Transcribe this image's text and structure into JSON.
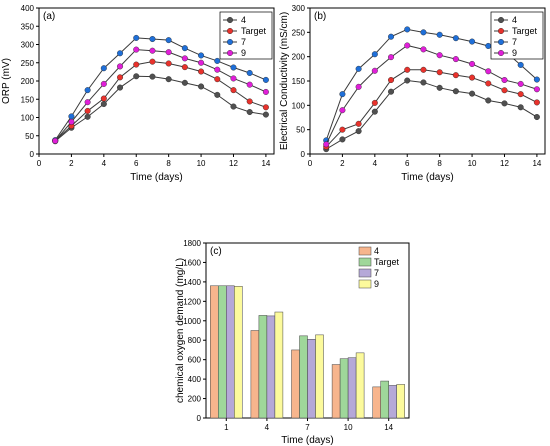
{
  "chart_data": [
    {
      "panel": "(a)",
      "type": "line",
      "xlabel": "Time (days)",
      "ylabel": "ORP (mV)",
      "xlim": [
        0,
        14.5
      ],
      "ylim": [
        0,
        400
      ],
      "xticks": [
        0,
        2,
        4,
        6,
        8,
        10,
        12,
        14
      ],
      "yticks": [
        0,
        50,
        100,
        150,
        200,
        250,
        300,
        350,
        400
      ],
      "x": [
        1,
        2,
        3,
        4,
        5,
        6,
        7,
        8,
        9,
        10,
        11,
        12,
        13,
        14
      ],
      "legend_position": "top-right",
      "series": [
        {
          "name": "4",
          "color": "#505050",
          "values": [
            35,
            72,
            102,
            137,
            182,
            213,
            212,
            205,
            195,
            185,
            162,
            130,
            115,
            108
          ]
        },
        {
          "name": "Target",
          "color": "#e8322c",
          "values": [
            37,
            77,
            118,
            152,
            210,
            245,
            253,
            248,
            238,
            226,
            205,
            175,
            144,
            128
          ]
        },
        {
          "name": "7",
          "color": "#1f6fd8",
          "values": [
            38,
            103,
            175,
            235,
            276,
            318,
            315,
            312,
            290,
            270,
            255,
            237,
            222,
            203
          ]
        },
        {
          "name": "9",
          "color": "#e01fd8",
          "values": [
            36,
            88,
            142,
            192,
            240,
            286,
            283,
            279,
            262,
            250,
            231,
            207,
            190,
            170
          ]
        }
      ]
    },
    {
      "panel": "(b)",
      "type": "line",
      "xlabel": "Time (days)",
      "ylabel": "Electrical Conductivity (mS/cm)",
      "xlim": [
        0,
        14.5
      ],
      "ylim": [
        0,
        300
      ],
      "xticks": [
        0,
        2,
        4,
        6,
        8,
        10,
        12,
        14
      ],
      "yticks": [
        0,
        50,
        100,
        150,
        200,
        250,
        300
      ],
      "x": [
        1,
        2,
        3,
        4,
        5,
        6,
        7,
        8,
        9,
        10,
        11,
        12,
        13,
        14
      ],
      "legend_position": "top-right",
      "series": [
        {
          "name": "4",
          "color": "#505050",
          "values": [
            10,
            30,
            47,
            87,
            128,
            151,
            147,
            136,
            129,
            124,
            110,
            104,
            96,
            76
          ]
        },
        {
          "name": "Target",
          "color": "#e8322c",
          "values": [
            15,
            50,
            62,
            105,
            152,
            173,
            173,
            168,
            162,
            157,
            145,
            131,
            123,
            106
          ]
        },
        {
          "name": "7",
          "color": "#1f6fd8",
          "values": [
            28,
            123,
            175,
            205,
            241,
            256,
            250,
            245,
            238,
            231,
            222,
            212,
            183,
            153
          ]
        },
        {
          "name": "9",
          "color": "#e01fd8",
          "values": [
            20,
            90,
            138,
            171,
            199,
            223,
            215,
            203,
            195,
            185,
            170,
            152,
            144,
            133
          ]
        }
      ]
    },
    {
      "panel": "(c)",
      "type": "bar",
      "xlabel": "Time (days)",
      "ylabel": "chemical oxygen demand (mg/L)",
      "ylim": [
        0,
        1800
      ],
      "yticks": [
        0,
        200,
        400,
        600,
        800,
        1000,
        1200,
        1400,
        1600,
        1800
      ],
      "categories": [
        "1",
        "4",
        "7",
        "10",
        "14"
      ],
      "legend_position": "top-right",
      "series": [
        {
          "name": "4",
          "color": "#f7b58d",
          "values": [
            1360,
            900,
            700,
            550,
            320
          ]
        },
        {
          "name": "Target",
          "color": "#9fd79a",
          "values": [
            1360,
            1055,
            845,
            610,
            380
          ]
        },
        {
          "name": "7",
          "color": "#b5a8d8",
          "values": [
            1360,
            1050,
            810,
            620,
            335
          ]
        },
        {
          "name": "9",
          "color": "#fcfa9c",
          "values": [
            1355,
            1090,
            855,
            670,
            345
          ]
        }
      ]
    }
  ]
}
